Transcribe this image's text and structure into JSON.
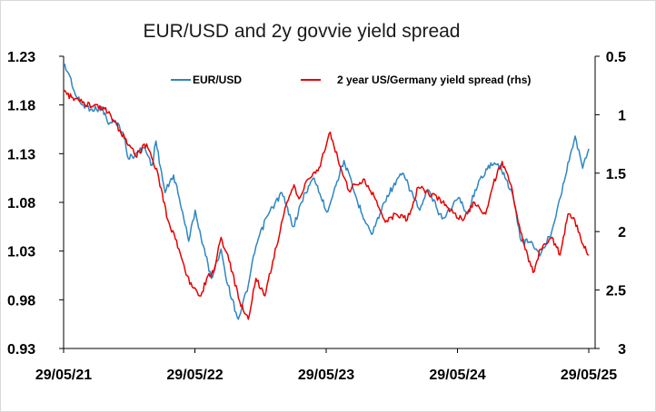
{
  "chart_data": {
    "type": "line",
    "title": "EUR/USD and 2y govvie yield spread",
    "x_axis": {
      "start": "2021-05-29",
      "end": "2025-05-29",
      "tick_labels": [
        "29/05/21",
        "29/05/22",
        "29/05/23",
        "29/05/24",
        "29/05/25"
      ]
    },
    "y_left": {
      "min": 0.93,
      "max": 1.23,
      "ticks": [
        1.23,
        1.18,
        1.13,
        1.08,
        1.03,
        0.98,
        0.93
      ],
      "tick_labels": [
        "1.23",
        "1.18",
        "1.13",
        "1.08",
        "1.03",
        "0.98",
        "0.93"
      ]
    },
    "y_right": {
      "min": 0.5,
      "max": 3,
      "inverted": true,
      "ticks": [
        0.5,
        1,
        1.5,
        2,
        2.5,
        3
      ],
      "tick_labels": [
        "0.5",
        "1",
        "1.5",
        "2",
        "2.5",
        "3"
      ]
    },
    "grid": false,
    "legend_position": "top",
    "series": [
      {
        "name": "EUR/USD",
        "axis": "left",
        "color": "#2e86c1",
        "points": [
          [
            "2021-05-29",
            1.222
          ],
          [
            "2021-06-15",
            1.21
          ],
          [
            "2021-07-01",
            1.19
          ],
          [
            "2021-07-20",
            1.18
          ],
          [
            "2021-08-15",
            1.176
          ],
          [
            "2021-09-15",
            1.176
          ],
          [
            "2021-10-01",
            1.16
          ],
          [
            "2021-10-20",
            1.164
          ],
          [
            "2021-11-10",
            1.152
          ],
          [
            "2021-11-25",
            1.125
          ],
          [
            "2021-12-15",
            1.13
          ],
          [
            "2022-01-10",
            1.136
          ],
          [
            "2022-01-30",
            1.118
          ],
          [
            "2022-02-10",
            1.143
          ],
          [
            "2022-03-07",
            1.09
          ],
          [
            "2022-03-31",
            1.108
          ],
          [
            "2022-04-25",
            1.07
          ],
          [
            "2022-05-12",
            1.04
          ],
          [
            "2022-05-30",
            1.072
          ],
          [
            "2022-06-15",
            1.045
          ],
          [
            "2022-07-14",
            1.002
          ],
          [
            "2022-08-10",
            1.032
          ],
          [
            "2022-08-29",
            0.995
          ],
          [
            "2022-09-27",
            0.96
          ],
          [
            "2022-10-25",
            0.995
          ],
          [
            "2022-11-15",
            1.035
          ],
          [
            "2022-12-15",
            1.065
          ],
          [
            "2023-01-26",
            1.09
          ],
          [
            "2023-02-27",
            1.055
          ],
          [
            "2023-04-01",
            1.09
          ],
          [
            "2023-04-26",
            1.105
          ],
          [
            "2023-05-31",
            1.07
          ],
          [
            "2023-07-18",
            1.123
          ],
          [
            "2023-08-25",
            1.08
          ],
          [
            "2023-10-03",
            1.047
          ],
          [
            "2023-11-15",
            1.087
          ],
          [
            "2023-12-28",
            1.11
          ],
          [
            "2024-02-14",
            1.072
          ],
          [
            "2024-03-08",
            1.093
          ],
          [
            "2024-04-16",
            1.063
          ],
          [
            "2024-06-01",
            1.085
          ],
          [
            "2024-06-26",
            1.068
          ],
          [
            "2024-07-17",
            1.093
          ],
          [
            "2024-08-23",
            1.118
          ],
          [
            "2024-09-25",
            1.118
          ],
          [
            "2024-10-31",
            1.085
          ],
          [
            "2024-11-22",
            1.04
          ],
          [
            "2024-12-20",
            1.04
          ],
          [
            "2025-01-13",
            1.025
          ],
          [
            "2025-02-14",
            1.049
          ],
          [
            "2025-03-05",
            1.078
          ],
          [
            "2025-04-21",
            1.148
          ],
          [
            "2025-05-12",
            1.115
          ],
          [
            "2025-05-29",
            1.135
          ]
        ]
      },
      {
        "name": "2 year US/Germany yield spread (rhs)",
        "axis": "right",
        "color": "#e60000",
        "points": [
          [
            "2021-05-29",
            0.8
          ],
          [
            "2021-06-20",
            0.85
          ],
          [
            "2021-07-20",
            0.9
          ],
          [
            "2021-08-15",
            0.93
          ],
          [
            "2021-09-20",
            0.95
          ],
          [
            "2021-10-15",
            1.05
          ],
          [
            "2021-11-15",
            1.2
          ],
          [
            "2021-12-15",
            1.35
          ],
          [
            "2022-01-15",
            1.25
          ],
          [
            "2022-02-15",
            1.5
          ],
          [
            "2022-03-15",
            1.9
          ],
          [
            "2022-04-15",
            2.15
          ],
          [
            "2022-05-15",
            2.45
          ],
          [
            "2022-06-15",
            2.55
          ],
          [
            "2022-07-01",
            2.4
          ],
          [
            "2022-07-20",
            2.35
          ],
          [
            "2022-08-10",
            2.05
          ],
          [
            "2022-09-01",
            2.25
          ],
          [
            "2022-10-01",
            2.6
          ],
          [
            "2022-10-25",
            2.75
          ],
          [
            "2022-11-15",
            2.4
          ],
          [
            "2022-12-10",
            2.55
          ],
          [
            "2023-01-01",
            2.25
          ],
          [
            "2023-02-01",
            1.85
          ],
          [
            "2023-03-01",
            1.6
          ],
          [
            "2023-03-15",
            1.72
          ],
          [
            "2023-04-10",
            1.55
          ],
          [
            "2023-05-10",
            1.45
          ],
          [
            "2023-06-10",
            1.15
          ],
          [
            "2023-07-01",
            1.38
          ],
          [
            "2023-08-01",
            1.65
          ],
          [
            "2023-09-10",
            1.55
          ],
          [
            "2023-10-10",
            1.7
          ],
          [
            "2023-11-10",
            1.92
          ],
          [
            "2023-12-10",
            1.85
          ],
          [
            "2024-01-10",
            1.9
          ],
          [
            "2024-02-10",
            1.62
          ],
          [
            "2024-03-10",
            1.68
          ],
          [
            "2024-04-10",
            1.72
          ],
          [
            "2024-05-10",
            1.82
          ],
          [
            "2024-06-15",
            1.9
          ],
          [
            "2024-07-15",
            1.75
          ],
          [
            "2024-08-15",
            1.85
          ],
          [
            "2024-09-05",
            1.6
          ],
          [
            "2024-09-30",
            1.4
          ],
          [
            "2024-10-25",
            1.6
          ],
          [
            "2024-11-20",
            2.0
          ],
          [
            "2024-12-10",
            2.2
          ],
          [
            "2024-12-25",
            2.35
          ],
          [
            "2025-01-15",
            2.15
          ],
          [
            "2025-02-15",
            2.05
          ],
          [
            "2025-03-10",
            2.2
          ],
          [
            "2025-04-01",
            1.85
          ],
          [
            "2025-04-20",
            1.9
          ],
          [
            "2025-05-10",
            2.1
          ],
          [
            "2025-05-29",
            2.2
          ]
        ]
      }
    ]
  }
}
